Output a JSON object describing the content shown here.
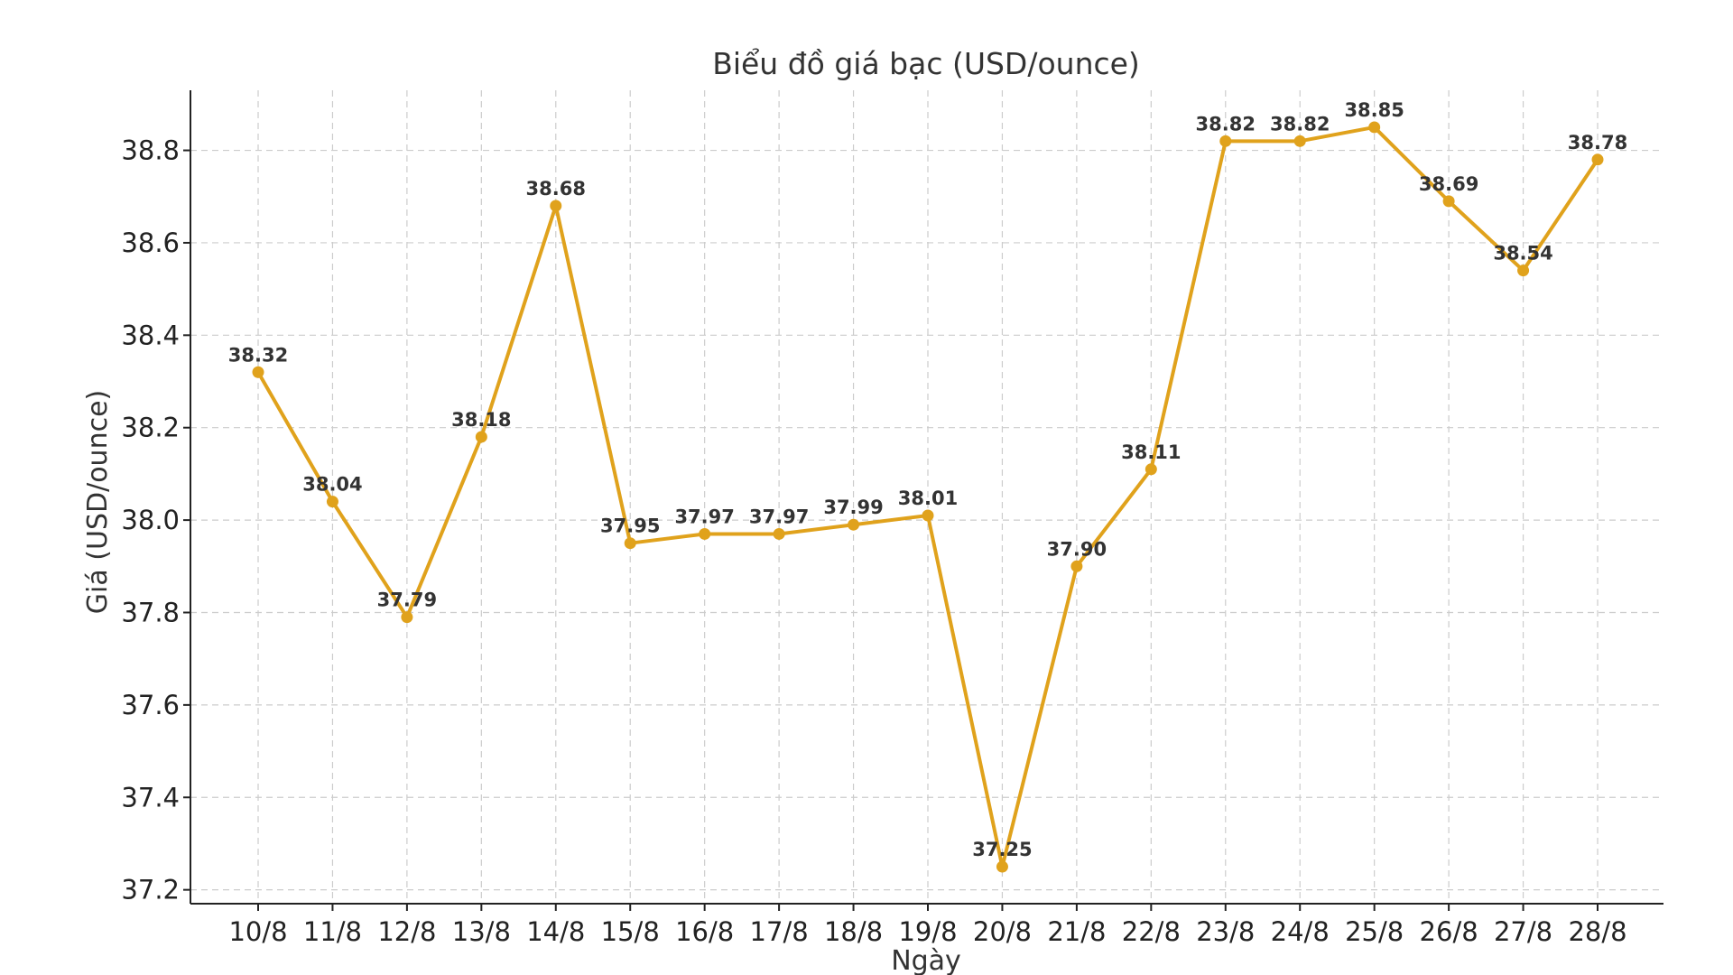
{
  "chart_data": {
    "type": "line",
    "title": "Biểu đồ giá bạc (USD/ounce)",
    "xlabel": "Ngày",
    "ylabel": "Giá (USD/ounce)",
    "categories": [
      "10/8",
      "11/8",
      "12/8",
      "13/8",
      "14/8",
      "15/8",
      "16/8",
      "17/8",
      "18/8",
      "19/8",
      "20/8",
      "21/8",
      "22/8",
      "23/8",
      "24/8",
      "25/8",
      "26/8",
      "27/8",
      "28/8"
    ],
    "series": [
      {
        "values": [
          38.32,
          38.04,
          37.79,
          38.18,
          38.68,
          37.95,
          37.97,
          37.97,
          37.99,
          38.01,
          37.25,
          37.9,
          38.11,
          38.82,
          38.82,
          38.85,
          38.69,
          38.54,
          38.78
        ],
        "data_labels": [
          "38.32",
          "38.04",
          "37.79",
          "38.18",
          "38.68",
          "37.95",
          "37.97",
          "37.97",
          "37.99",
          "38.01",
          "37.25",
          "37.90",
          "38.11",
          "38.82",
          "38.82",
          "38.85",
          "38.69",
          "38.54",
          "38.78"
        ],
        "color": "#e0a21c"
      }
    ],
    "yticks": [
      "37.2",
      "37.4",
      "37.6",
      "37.8",
      "38.0",
      "38.2",
      "38.4",
      "38.6",
      "38.8"
    ],
    "ylim": [
      37.17,
      38.93
    ],
    "grid": true,
    "legend": "none"
  }
}
